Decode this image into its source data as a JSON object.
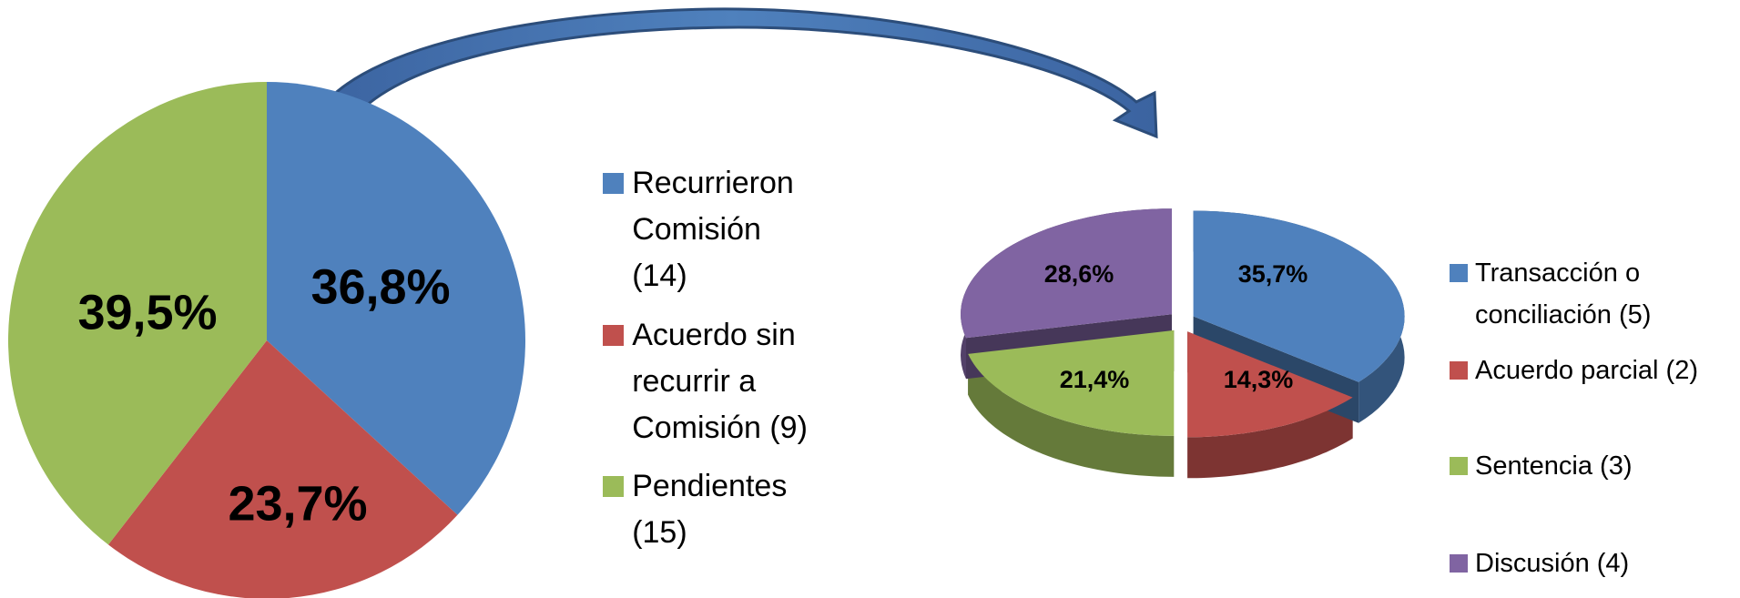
{
  "chart_data": [
    {
      "type": "pie",
      "categories": [
        "Recurrieron Comisión (14)",
        "Acuerdo sin recurrir a Comisión (9)",
        "Pendientes (15)"
      ],
      "values": [
        36.8,
        23.7,
        39.5
      ],
      "value_labels": [
        "36,8%",
        "23,7%",
        "39,5%"
      ],
      "colors": [
        "#4f81bd",
        "#c0504d",
        "#9bbb59"
      ]
    },
    {
      "type": "pie3d",
      "categories": [
        "Transacción o conciliación (5)",
        "Acuerdo parcial (2)",
        "Sentencia (3)",
        "Discusión (4)"
      ],
      "values": [
        35.7,
        14.3,
        21.4,
        28.6
      ],
      "value_labels": [
        "35,7%",
        "14,3%",
        "21,4%",
        "28,6%"
      ],
      "colors": [
        "#4f81bd",
        "#c0504d",
        "#9bbb59",
        "#8064a2"
      ]
    }
  ]
}
